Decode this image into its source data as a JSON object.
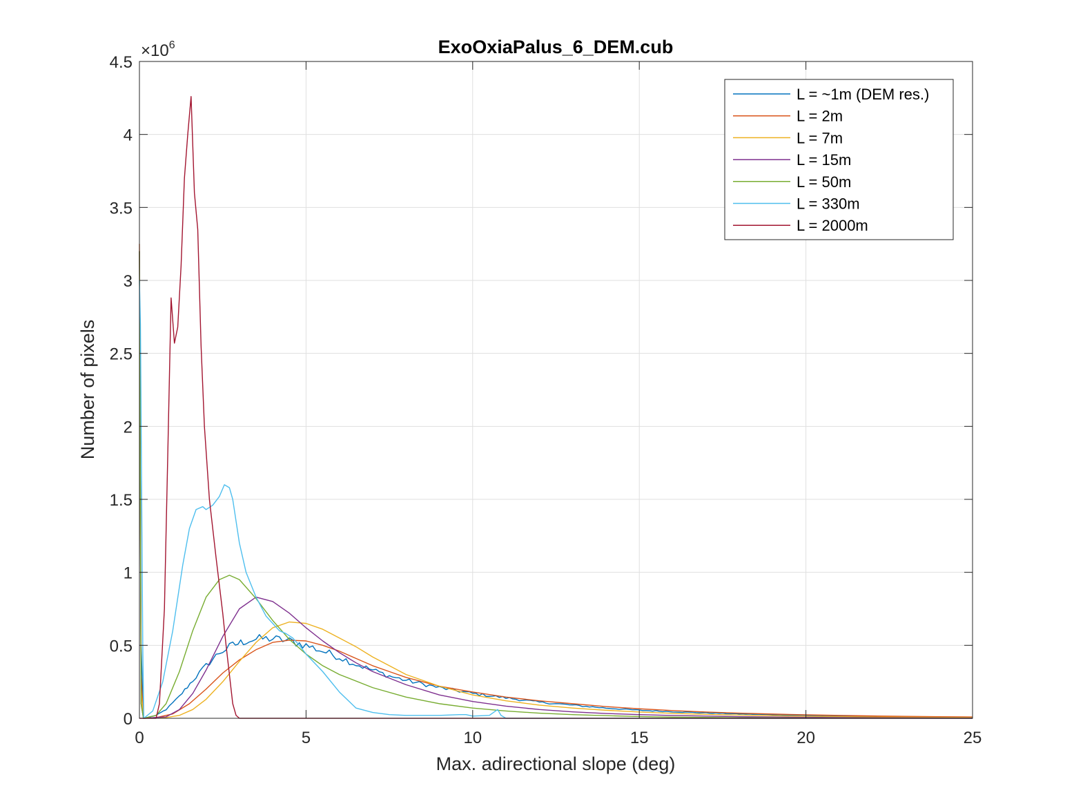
{
  "chart_data": {
    "type": "line",
    "title": "ExoOxiaPalus_6_DEM.cub",
    "xlabel": "Max. adirectional slope (deg)",
    "ylabel": "Number of pixels",
    "y_exponent_label": "×10",
    "y_exponent_power": "6",
    "xlim": [
      0,
      25
    ],
    "ylim": [
      0,
      4.5
    ],
    "y_multiplier": 1000000,
    "x_ticks": [
      0,
      5,
      10,
      15,
      20,
      25
    ],
    "x_tick_labels": [
      "0",
      "5",
      "10",
      "15",
      "20",
      "25"
    ],
    "y_ticks": [
      0,
      0.5,
      1,
      1.5,
      2,
      2.5,
      3,
      3.5,
      4,
      4.5
    ],
    "y_tick_labels": [
      "0",
      "0.5",
      "1",
      "1.5",
      "2",
      "2.5",
      "3",
      "3.5",
      "4",
      "4.5"
    ],
    "grid": true,
    "legend_position": "top-right",
    "series": [
      {
        "name": "L = ~1m (DEM res.)",
        "color": "#0072BD",
        "noisy": true,
        "points": [
          [
            0,
            3.2
          ],
          [
            0.05,
            0.5
          ],
          [
            0.12,
            0
          ],
          [
            0.5,
            0.02
          ],
          [
            0.8,
            0.06
          ],
          [
            1.2,
            0.15
          ],
          [
            1.6,
            0.26
          ],
          [
            2.0,
            0.36
          ],
          [
            2.4,
            0.45
          ],
          [
            2.8,
            0.5
          ],
          [
            3.2,
            0.53
          ],
          [
            3.6,
            0.545
          ],
          [
            4.0,
            0.545
          ],
          [
            4.5,
            0.53
          ],
          [
            5.0,
            0.5
          ],
          [
            5.5,
            0.46
          ],
          [
            6.0,
            0.42
          ],
          [
            6.5,
            0.37
          ],
          [
            7.0,
            0.33
          ],
          [
            7.5,
            0.29
          ],
          [
            8.0,
            0.26
          ],
          [
            9.0,
            0.21
          ],
          [
            10.0,
            0.17
          ],
          [
            11.0,
            0.14
          ],
          [
            12.0,
            0.11
          ],
          [
            13.0,
            0.09
          ],
          [
            14.0,
            0.07
          ],
          [
            15.0,
            0.055
          ],
          [
            16.0,
            0.045
          ],
          [
            17.0,
            0.037
          ],
          [
            18.0,
            0.03
          ],
          [
            19.0,
            0.025
          ],
          [
            20.0,
            0.02
          ],
          [
            21.0,
            0.016
          ],
          [
            22.0,
            0.013
          ],
          [
            23.0,
            0.01
          ],
          [
            24.0,
            0.008
          ],
          [
            25.0,
            0.006
          ]
        ]
      },
      {
        "name": "L = 2m",
        "color": "#D95319",
        "noisy": false,
        "points": [
          [
            0,
            3.25
          ],
          [
            0.05,
            0.3
          ],
          [
            0.12,
            0
          ],
          [
            0.5,
            0.005
          ],
          [
            1.0,
            0.03
          ],
          [
            1.5,
            0.1
          ],
          [
            2.0,
            0.2
          ],
          [
            2.5,
            0.31
          ],
          [
            3.0,
            0.4
          ],
          [
            3.5,
            0.47
          ],
          [
            4.0,
            0.52
          ],
          [
            4.5,
            0.535
          ],
          [
            5.0,
            0.53
          ],
          [
            5.5,
            0.5
          ],
          [
            6.0,
            0.46
          ],
          [
            6.5,
            0.41
          ],
          [
            7.0,
            0.36
          ],
          [
            7.5,
            0.32
          ],
          [
            8.0,
            0.28
          ],
          [
            9.0,
            0.22
          ],
          [
            10.0,
            0.18
          ],
          [
            11.0,
            0.145
          ],
          [
            12.0,
            0.12
          ],
          [
            13.0,
            0.1
          ],
          [
            14.0,
            0.08
          ],
          [
            15.0,
            0.065
          ],
          [
            16.0,
            0.053
          ],
          [
            17.0,
            0.043
          ],
          [
            18.0,
            0.035
          ],
          [
            19.0,
            0.029
          ],
          [
            20.0,
            0.024
          ],
          [
            21.0,
            0.02
          ],
          [
            22.0,
            0.016
          ],
          [
            23.0,
            0.013
          ],
          [
            24.0,
            0.011
          ],
          [
            25.0,
            0.009
          ]
        ]
      },
      {
        "name": "L = 7m",
        "color": "#EDB120",
        "noisy": false,
        "points": [
          [
            0,
            3.2
          ],
          [
            0.05,
            0.2
          ],
          [
            0.12,
            0
          ],
          [
            0.8,
            0.005
          ],
          [
            1.2,
            0.02
          ],
          [
            1.6,
            0.06
          ],
          [
            2.0,
            0.13
          ],
          [
            2.5,
            0.25
          ],
          [
            3.0,
            0.39
          ],
          [
            3.5,
            0.52
          ],
          [
            4.0,
            0.62
          ],
          [
            4.5,
            0.66
          ],
          [
            5.0,
            0.65
          ],
          [
            5.5,
            0.61
          ],
          [
            6.0,
            0.55
          ],
          [
            6.5,
            0.49
          ],
          [
            7.0,
            0.42
          ],
          [
            7.5,
            0.36
          ],
          [
            8.0,
            0.3
          ],
          [
            9.0,
            0.22
          ],
          [
            10.0,
            0.16
          ],
          [
            11.0,
            0.12
          ],
          [
            12.0,
            0.09
          ],
          [
            13.0,
            0.07
          ],
          [
            14.0,
            0.055
          ],
          [
            15.0,
            0.043
          ],
          [
            16.0,
            0.034
          ],
          [
            17.0,
            0.027
          ],
          [
            18.0,
            0.022
          ],
          [
            19.0,
            0.018
          ],
          [
            20.0,
            0.014
          ],
          [
            22.0,
            0.009
          ],
          [
            25.0,
            0.005
          ]
        ]
      },
      {
        "name": "L = 15m",
        "color": "#7E2F8E",
        "noisy": false,
        "points": [
          [
            0,
            3.2
          ],
          [
            0.05,
            0.1
          ],
          [
            0.12,
            0
          ],
          [
            0.8,
            0.01
          ],
          [
            1.2,
            0.06
          ],
          [
            1.6,
            0.17
          ],
          [
            2.0,
            0.33
          ],
          [
            2.5,
            0.56
          ],
          [
            3.0,
            0.75
          ],
          [
            3.5,
            0.83
          ],
          [
            4.0,
            0.8
          ],
          [
            4.5,
            0.72
          ],
          [
            5.0,
            0.62
          ],
          [
            5.5,
            0.53
          ],
          [
            6.0,
            0.45
          ],
          [
            6.5,
            0.38
          ],
          [
            7.0,
            0.32
          ],
          [
            8.0,
            0.23
          ],
          [
            9.0,
            0.16
          ],
          [
            10.0,
            0.115
          ],
          [
            11.0,
            0.083
          ],
          [
            12.0,
            0.06
          ],
          [
            13.0,
            0.044
          ],
          [
            14.0,
            0.033
          ],
          [
            15.0,
            0.025
          ],
          [
            16.0,
            0.019
          ],
          [
            18.0,
            0.011
          ],
          [
            20.0,
            0.007
          ],
          [
            22.0,
            0.004
          ],
          [
            25.0,
            0.002
          ]
        ]
      },
      {
        "name": "L = 50m",
        "color": "#77AC30",
        "noisy": false,
        "points": [
          [
            0,
            3.2
          ],
          [
            0.05,
            0.1
          ],
          [
            0.12,
            0
          ],
          [
            0.5,
            0.02
          ],
          [
            0.8,
            0.1
          ],
          [
            1.2,
            0.32
          ],
          [
            1.6,
            0.6
          ],
          [
            2.0,
            0.83
          ],
          [
            2.4,
            0.95
          ],
          [
            2.7,
            0.98
          ],
          [
            3.0,
            0.95
          ],
          [
            3.5,
            0.82
          ],
          [
            4.0,
            0.67
          ],
          [
            4.5,
            0.54
          ],
          [
            5.0,
            0.44
          ],
          [
            5.5,
            0.36
          ],
          [
            6.0,
            0.3
          ],
          [
            7.0,
            0.21
          ],
          [
            8.0,
            0.145
          ],
          [
            9.0,
            0.1
          ],
          [
            10.0,
            0.07
          ],
          [
            11.0,
            0.05
          ],
          [
            12.0,
            0.035
          ],
          [
            13.0,
            0.025
          ],
          [
            14.0,
            0.018
          ],
          [
            15.0,
            0.012
          ],
          [
            16.0,
            0.008
          ],
          [
            18.0,
            0.004
          ],
          [
            20.0,
            0.002
          ],
          [
            25.0,
            0.0005
          ]
        ]
      },
      {
        "name": "L = 330m",
        "color": "#4DBEEE",
        "noisy": false,
        "points": [
          [
            0,
            3.0
          ],
          [
            0.03,
            2.7
          ],
          [
            0.1,
            0.5
          ],
          [
            0.13,
            0
          ],
          [
            0.4,
            0.05
          ],
          [
            0.7,
            0.25
          ],
          [
            1.0,
            0.6
          ],
          [
            1.3,
            1.05
          ],
          [
            1.5,
            1.3
          ],
          [
            1.7,
            1.43
          ],
          [
            1.9,
            1.45
          ],
          [
            2.0,
            1.43
          ],
          [
            2.2,
            1.46
          ],
          [
            2.4,
            1.52
          ],
          [
            2.55,
            1.6
          ],
          [
            2.7,
            1.58
          ],
          [
            2.8,
            1.5
          ],
          [
            2.9,
            1.35
          ],
          [
            3.0,
            1.2
          ],
          [
            3.2,
            1.0
          ],
          [
            3.5,
            0.83
          ],
          [
            3.8,
            0.7
          ],
          [
            4.0,
            0.65
          ],
          [
            4.2,
            0.6
          ],
          [
            4.4,
            0.58
          ],
          [
            4.6,
            0.55
          ],
          [
            4.8,
            0.5
          ],
          [
            5.0,
            0.44
          ],
          [
            5.5,
            0.32
          ],
          [
            6.0,
            0.18
          ],
          [
            6.5,
            0.07
          ],
          [
            7.0,
            0.04
          ],
          [
            7.5,
            0.025
          ],
          [
            8.0,
            0.02
          ],
          [
            9.0,
            0.02
          ],
          [
            9.6,
            0.025
          ],
          [
            9.8,
            0.025
          ],
          [
            10.0,
            0.015
          ],
          [
            10.5,
            0.02
          ],
          [
            10.75,
            0.06
          ],
          [
            10.85,
            0.02
          ],
          [
            11.0,
            0.0
          ],
          [
            12.0,
            0.0
          ],
          [
            25.0,
            0.0
          ]
        ]
      },
      {
        "name": "L = 2000m",
        "color": "#A2142F",
        "noisy": false,
        "points": [
          [
            0,
            0.0
          ],
          [
            0.5,
            0.0
          ],
          [
            0.6,
            0.1
          ],
          [
            0.75,
            0.75
          ],
          [
            0.85,
            1.8
          ],
          [
            0.95,
            2.88
          ],
          [
            1.05,
            2.57
          ],
          [
            1.15,
            2.68
          ],
          [
            1.25,
            3.1
          ],
          [
            1.35,
            3.7
          ],
          [
            1.45,
            4.0
          ],
          [
            1.55,
            4.26
          ],
          [
            1.65,
            3.6
          ],
          [
            1.75,
            3.35
          ],
          [
            1.85,
            2.55
          ],
          [
            1.95,
            2.0
          ],
          [
            2.1,
            1.5
          ],
          [
            2.3,
            1.1
          ],
          [
            2.5,
            0.72
          ],
          [
            2.6,
            0.5
          ],
          [
            2.7,
            0.3
          ],
          [
            2.8,
            0.1
          ],
          [
            2.9,
            0.02
          ],
          [
            3.0,
            0.0
          ],
          [
            10.0,
            0.0
          ],
          [
            25.0,
            0.0
          ]
        ]
      }
    ]
  }
}
